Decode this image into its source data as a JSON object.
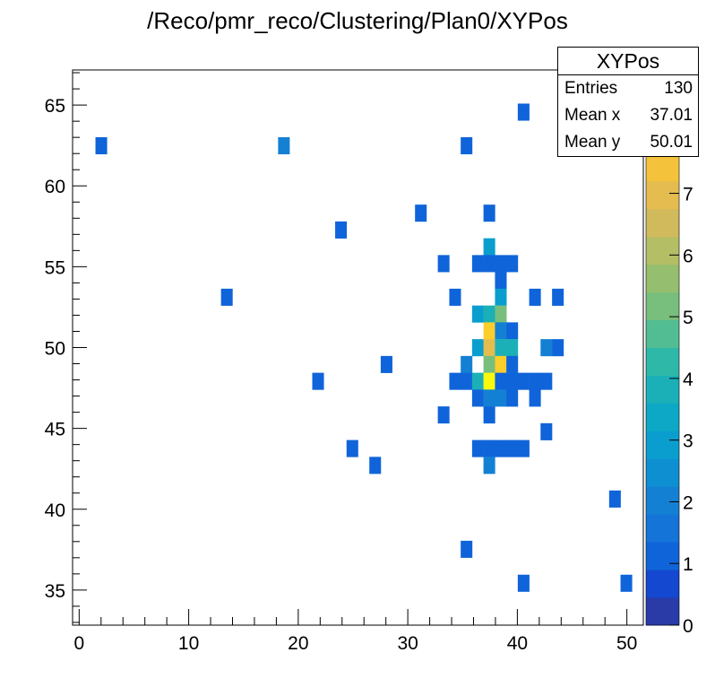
{
  "chart_data": {
    "type": "heatmap",
    "title": "/Reco/pmr_reco/Clustering/Plan0/XYPos",
    "xlabel": "",
    "ylabel": "",
    "xlim": [
      -0.6,
      51.5
    ],
    "ylim": [
      32.83,
      67.17
    ],
    "zlim": [
      0,
      9
    ],
    "bin_width": [
      1.042,
      1.0406
    ],
    "x_ticks": [
      0,
      10,
      20,
      30,
      40,
      50
    ],
    "y_ticks": [
      35,
      40,
      45,
      50,
      55,
      60,
      65
    ],
    "z_ticks": [
      0,
      1,
      2,
      3,
      4,
      5,
      6,
      7
    ],
    "grid": false,
    "palette": [
      "#2a3ba8",
      "#1548d0",
      "#1064d9",
      "#1474d8",
      "#1480d4",
      "#0e8fd1",
      "#0a9ecf",
      "#0ca8c6",
      "#1bb0b8",
      "#2eb8a8",
      "#52bd92",
      "#78be7c",
      "#95bf6e",
      "#b4be65",
      "#d1ba5c",
      "#e4bc50",
      "#f4c33b",
      "#fcce2c",
      "#f6e31f",
      "#f8fa0d"
    ],
    "cells": [
      {
        "x": 40.56,
        "y": 64.57,
        "z": 1
      },
      {
        "x": 2.01,
        "y": 62.49,
        "z": 1
      },
      {
        "x": 18.68,
        "y": 62.49,
        "z": 2
      },
      {
        "x": 35.35,
        "y": 62.49,
        "z": 1
      },
      {
        "x": 31.18,
        "y": 58.32,
        "z": 1
      },
      {
        "x": 37.43,
        "y": 58.32,
        "z": 1
      },
      {
        "x": 23.89,
        "y": 57.28,
        "z": 1
      },
      {
        "x": 37.43,
        "y": 56.24,
        "z": 3
      },
      {
        "x": 33.26,
        "y": 55.2,
        "z": 1
      },
      {
        "x": 36.39,
        "y": 55.2,
        "z": 1
      },
      {
        "x": 37.43,
        "y": 55.2,
        "z": 1
      },
      {
        "x": 38.48,
        "y": 55.2,
        "z": 1
      },
      {
        "x": 39.52,
        "y": 55.2,
        "z": 1
      },
      {
        "x": 38.48,
        "y": 54.16,
        "z": 1
      },
      {
        "x": 13.47,
        "y": 53.12,
        "z": 1
      },
      {
        "x": 34.31,
        "y": 53.12,
        "z": 1
      },
      {
        "x": 38.48,
        "y": 53.12,
        "z": 3
      },
      {
        "x": 41.6,
        "y": 53.12,
        "z": 1
      },
      {
        "x": 43.69,
        "y": 53.12,
        "z": 1
      },
      {
        "x": 36.39,
        "y": 52.08,
        "z": 3
      },
      {
        "x": 37.43,
        "y": 52.08,
        "z": 4
      },
      {
        "x": 38.48,
        "y": 52.08,
        "z": 5
      },
      {
        "x": 37.43,
        "y": 51.04,
        "z": 8
      },
      {
        "x": 38.48,
        "y": 51.04,
        "z": 2
      },
      {
        "x": 39.52,
        "y": 51.04,
        "z": 1
      },
      {
        "x": 36.39,
        "y": 50.0,
        "z": 3
      },
      {
        "x": 37.43,
        "y": 50.0,
        "z": 7
      },
      {
        "x": 38.48,
        "y": 50.0,
        "z": 4
      },
      {
        "x": 39.52,
        "y": 50.0,
        "z": 4
      },
      {
        "x": 42.64,
        "y": 50.0,
        "z": 2
      },
      {
        "x": 43.69,
        "y": 50.0,
        "z": 1
      },
      {
        "x": 28.05,
        "y": 48.96,
        "z": 1
      },
      {
        "x": 35.35,
        "y": 48.96,
        "z": 2
      },
      {
        "x": 37.43,
        "y": 48.96,
        "z": 5
      },
      {
        "x": 38.48,
        "y": 48.96,
        "z": 8
      },
      {
        "x": 39.52,
        "y": 48.96,
        "z": 1
      },
      {
        "x": 21.8,
        "y": 47.92,
        "z": 1
      },
      {
        "x": 34.31,
        "y": 47.92,
        "z": 1
      },
      {
        "x": 35.35,
        "y": 47.92,
        "z": 1
      },
      {
        "x": 36.39,
        "y": 47.92,
        "z": 4
      },
      {
        "x": 37.43,
        "y": 47.92,
        "z": 9
      },
      {
        "x": 38.48,
        "y": 47.92,
        "z": 1
      },
      {
        "x": 39.52,
        "y": 47.92,
        "z": 1
      },
      {
        "x": 40.56,
        "y": 47.92,
        "z": 1
      },
      {
        "x": 41.6,
        "y": 47.92,
        "z": 1
      },
      {
        "x": 42.64,
        "y": 47.92,
        "z": 1
      },
      {
        "x": 36.39,
        "y": 46.88,
        "z": 1
      },
      {
        "x": 37.43,
        "y": 46.88,
        "z": 2
      },
      {
        "x": 38.48,
        "y": 46.88,
        "z": 2
      },
      {
        "x": 39.52,
        "y": 46.88,
        "z": 1
      },
      {
        "x": 41.6,
        "y": 46.88,
        "z": 1
      },
      {
        "x": 33.26,
        "y": 45.84,
        "z": 1
      },
      {
        "x": 37.43,
        "y": 45.84,
        "z": 1
      },
      {
        "x": 42.64,
        "y": 44.8,
        "z": 1
      },
      {
        "x": 24.93,
        "y": 43.76,
        "z": 1
      },
      {
        "x": 36.39,
        "y": 43.76,
        "z": 1
      },
      {
        "x": 37.43,
        "y": 43.76,
        "z": 1
      },
      {
        "x": 38.48,
        "y": 43.76,
        "z": 1
      },
      {
        "x": 39.52,
        "y": 43.76,
        "z": 1
      },
      {
        "x": 40.56,
        "y": 43.76,
        "z": 1
      },
      {
        "x": 27.01,
        "y": 42.72,
        "z": 1
      },
      {
        "x": 37.43,
        "y": 42.72,
        "z": 2
      },
      {
        "x": 48.9,
        "y": 40.64,
        "z": 1
      },
      {
        "x": 35.35,
        "y": 37.53,
        "z": 1
      },
      {
        "x": 40.56,
        "y": 35.43,
        "z": 1
      },
      {
        "x": 49.94,
        "y": 35.43,
        "z": 1
      }
    ]
  },
  "stats": {
    "name": "XYPos",
    "rows": [
      {
        "label": "Entries",
        "value": "130"
      },
      {
        "label": "Mean x",
        "value": "37.01"
      },
      {
        "label": "Mean y",
        "value": "50.01"
      }
    ]
  }
}
